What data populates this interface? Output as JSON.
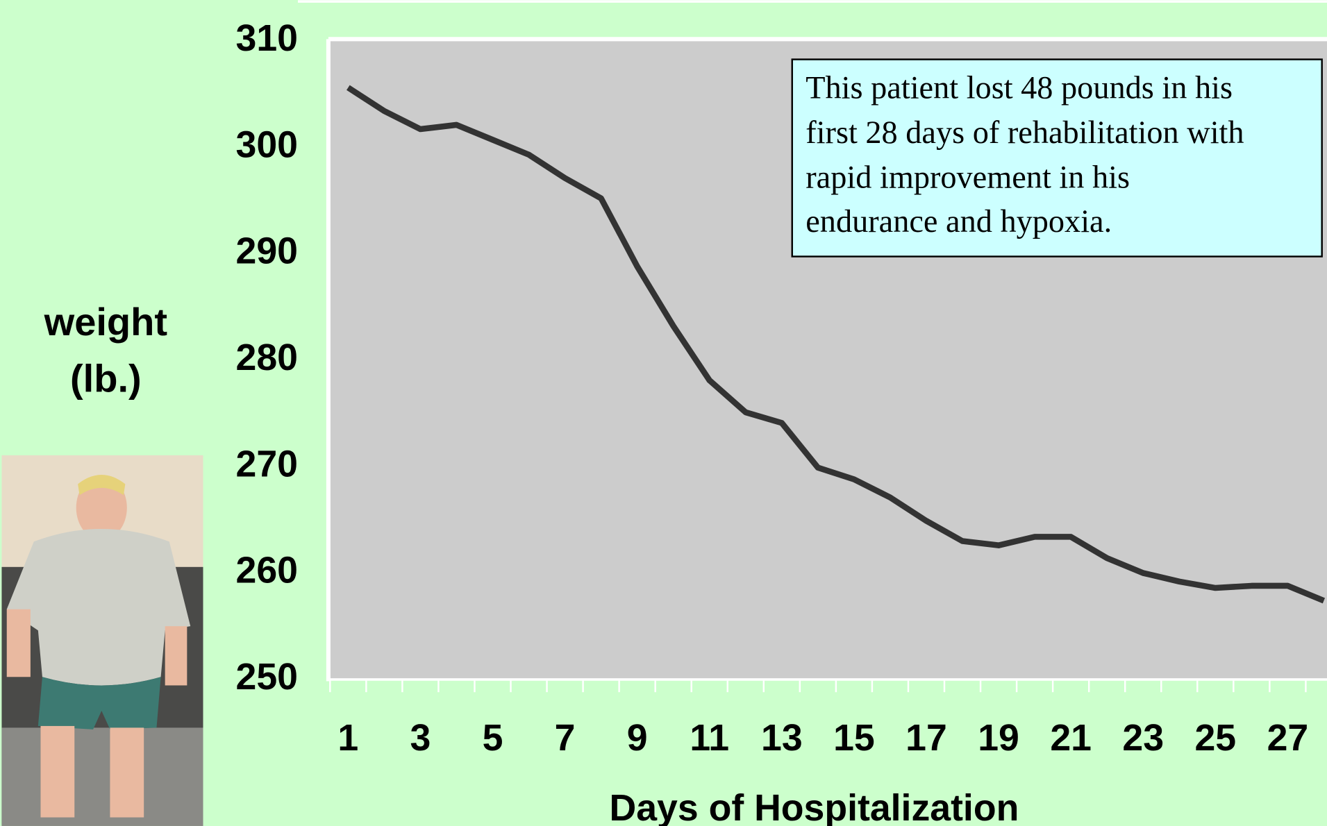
{
  "chart_data": {
    "type": "line",
    "categories": [
      "1",
      null,
      "3",
      null,
      "5",
      null,
      "7",
      null,
      "9",
      null,
      "11",
      null,
      "13",
      null,
      "15",
      null,
      "17",
      null,
      "19",
      null,
      "21",
      null,
      "23",
      null,
      "25",
      null,
      "27",
      null
    ],
    "series": [
      {
        "name": "weight",
        "color": "#333333",
        "values": [
          305.6,
          303.4,
          301.7,
          302.1,
          300.7,
          299.3,
          297.1,
          295.2,
          288.8,
          283.2,
          278.1,
          275.1,
          274.1,
          269.9,
          268.8,
          267.1,
          264.9,
          263.0,
          262.6,
          263.4,
          263.4,
          261.4,
          260.0,
          259.2,
          258.6,
          258.8,
          258.8,
          257.4
        ]
      }
    ],
    "ylim": [
      250,
      310
    ],
    "yticks": [
      250,
      260,
      270,
      280,
      290,
      300,
      310
    ],
    "ylabel_lines": [
      "weight",
      "(lb.)"
    ],
    "xlabel": "Days of Hospitalization",
    "annotation_lines": [
      "This patient lost 48 pounds in his",
      "first 28 days of rehabilitation with",
      "rapid improvement in his",
      "endurance and  hypoxia."
    ],
    "grid": false
  }
}
